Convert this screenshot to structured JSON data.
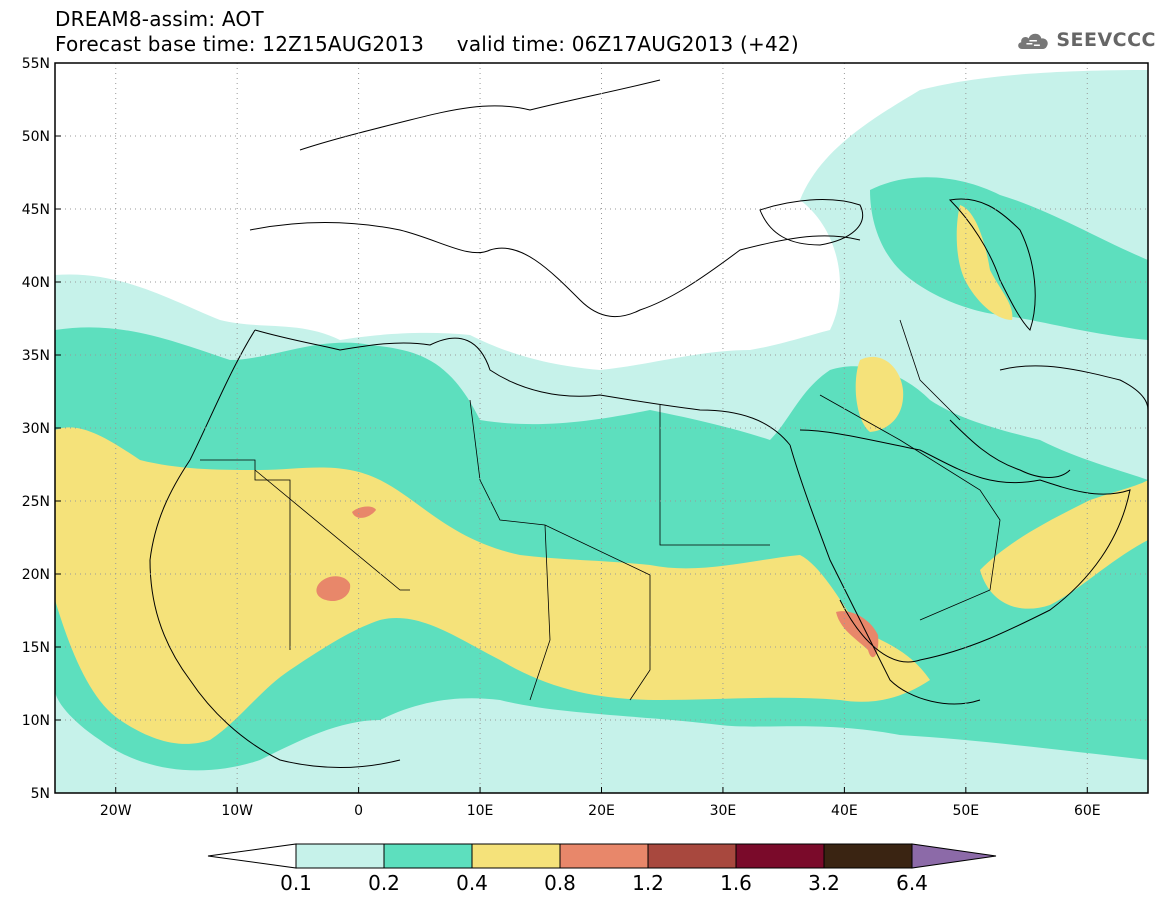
{
  "header": {
    "line1": "DREAM8-assim: AOT",
    "line2": "Forecast base time: 12Z15AUG2013     valid time: 06Z17AUG2013 (+42)"
  },
  "logo": {
    "text": "SEEVCCC",
    "icon": "cloud-icon"
  },
  "map": {
    "lon_range": [
      -25,
      65
    ],
    "lat_range": [
      5,
      55
    ],
    "lat_ticks": [
      "55N",
      "50N",
      "45N",
      "40N",
      "35N",
      "30N",
      "25N",
      "20N",
      "15N",
      "10N",
      "5N"
    ],
    "lon_ticks": [
      "20W",
      "10W",
      "0",
      "10E",
      "20E",
      "30E",
      "40E",
      "50E",
      "60E"
    ],
    "grid": "dotted"
  },
  "colorbar": {
    "levels": [
      "0.1",
      "0.2",
      "0.4",
      "0.8",
      "1.2",
      "1.6",
      "3.2",
      "6.4"
    ],
    "colors": [
      "#ffffff",
      "#c6f2ea",
      "#5ddfbe",
      "#f5e27a",
      "#e8876a",
      "#a8483e",
      "#7a0a2a",
      "#3a2412",
      "#8c6aa8"
    ]
  }
}
